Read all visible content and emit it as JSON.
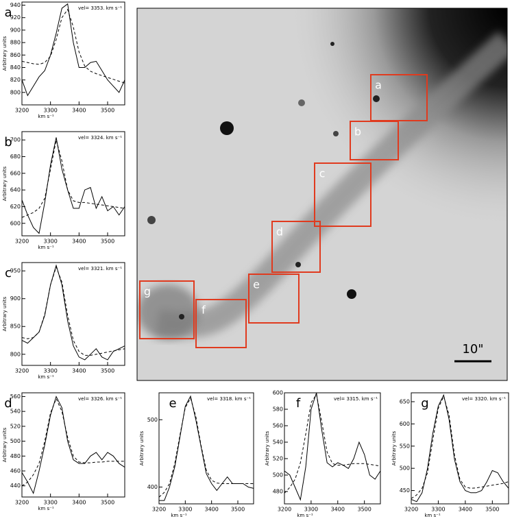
{
  "chart_data": [
    {
      "type": "line",
      "label": "a",
      "annotation": "vel= 3353. km s⁻¹",
      "ylabel": "Arbitrary units",
      "xlabel": "km s⁻¹",
      "xlim": [
        3200,
        3560
      ],
      "xticks": [
        3200,
        3300,
        3400,
        3500
      ],
      "ylim": [
        780,
        945
      ],
      "yticks": [
        800,
        820,
        840,
        860,
        880,
        900,
        920,
        940
      ],
      "x": [
        3200,
        3220,
        3240,
        3260,
        3280,
        3300,
        3320,
        3340,
        3360,
        3380,
        3400,
        3420,
        3440,
        3460,
        3480,
        3500,
        3520,
        3540,
        3560
      ],
      "series": [
        {
          "color": "#000000",
          "dash": false,
          "values": [
            820,
            795,
            810,
            825,
            835,
            860,
            895,
            935,
            942,
            880,
            840,
            840,
            848,
            850,
            835,
            820,
            810,
            800,
            820
          ]
        },
        {
          "color": "#000000",
          "dash": true,
          "values": [
            850,
            848,
            846,
            845,
            848,
            858,
            885,
            920,
            933,
            905,
            865,
            842,
            834,
            830,
            827,
            824,
            821,
            818,
            815
          ]
        }
      ]
    },
    {
      "type": "line",
      "label": "b",
      "annotation": "vel= 3324. km s⁻¹",
      "ylabel": "Arbitrary units",
      "xlabel": "km s⁻¹",
      "xlim": [
        3200,
        3560
      ],
      "xticks": [
        3200,
        3300,
        3400,
        3500
      ],
      "ylim": [
        585,
        710
      ],
      "yticks": [
        600,
        620,
        640,
        660,
        680,
        700
      ],
      "x": [
        3200,
        3220,
        3240,
        3260,
        3280,
        3300,
        3320,
        3340,
        3360,
        3380,
        3400,
        3420,
        3440,
        3460,
        3480,
        3500,
        3520,
        3540,
        3560
      ],
      "series": [
        {
          "color": "#000000",
          "dash": false,
          "values": [
            628,
            610,
            595,
            588,
            625,
            670,
            703,
            665,
            640,
            618,
            618,
            640,
            643,
            618,
            632,
            615,
            620,
            610,
            620
          ]
        },
        {
          "color": "#000000",
          "dash": true,
          "values": [
            607,
            610,
            613,
            618,
            630,
            665,
            700,
            675,
            640,
            627,
            625,
            625,
            624,
            623,
            622,
            621,
            620,
            619,
            618
          ]
        }
      ]
    },
    {
      "type": "line",
      "label": "c",
      "annotation": "vel= 3321. km s⁻¹",
      "ylabel": "Arbitrary units",
      "xlabel": "km s⁻¹",
      "xlim": [
        3200,
        3560
      ],
      "xticks": [
        3200,
        3300,
        3400,
        3500
      ],
      "ylim": [
        780,
        965
      ],
      "yticks": [
        800,
        850,
        900,
        950
      ],
      "x": [
        3200,
        3220,
        3240,
        3260,
        3280,
        3300,
        3320,
        3340,
        3360,
        3380,
        3400,
        3420,
        3440,
        3460,
        3480,
        3500,
        3520,
        3540,
        3560
      ],
      "series": [
        {
          "color": "#000000",
          "dash": false,
          "values": [
            825,
            820,
            830,
            840,
            870,
            925,
            960,
            925,
            860,
            815,
            795,
            790,
            800,
            810,
            795,
            790,
            805,
            810,
            815
          ]
        },
        {
          "color": "#000000",
          "dash": true,
          "values": [
            830,
            828,
            830,
            840,
            872,
            925,
            957,
            930,
            870,
            825,
            805,
            798,
            798,
            800,
            802,
            804,
            806,
            808,
            810
          ]
        }
      ]
    },
    {
      "type": "line",
      "label": "d",
      "annotation": "vel= 3326. km s⁻¹",
      "ylabel": "Arbitrary units",
      "xlabel": "km s⁻¹",
      "xlim": [
        3200,
        3560
      ],
      "xticks": [
        3200,
        3300,
        3400,
        3500
      ],
      "ylim": [
        425,
        565
      ],
      "yticks": [
        440,
        460,
        480,
        500,
        520,
        540,
        560
      ],
      "x": [
        3200,
        3220,
        3240,
        3260,
        3280,
        3300,
        3320,
        3340,
        3360,
        3380,
        3400,
        3420,
        3440,
        3460,
        3480,
        3500,
        3520,
        3540,
        3560
      ],
      "series": [
        {
          "color": "#000000",
          "dash": false,
          "values": [
            458,
            445,
            430,
            460,
            495,
            535,
            560,
            545,
            500,
            475,
            470,
            470,
            480,
            485,
            475,
            485,
            480,
            470,
            465
          ]
        },
        {
          "color": "#000000",
          "dash": true,
          "values": [
            440,
            445,
            455,
            470,
            500,
            538,
            557,
            540,
            505,
            480,
            472,
            471,
            471,
            472,
            472,
            473,
            473,
            473,
            473
          ]
        }
      ]
    },
    {
      "type": "line",
      "label": "e",
      "annotation": "vel= 3318. km s⁻¹",
      "ylabel": "Arbitrary units",
      "xlabel": "km s⁻¹",
      "xlim": [
        3200,
        3560
      ],
      "xticks": [
        3200,
        3300,
        3400,
        3500
      ],
      "ylim": [
        375,
        540
      ],
      "yticks": [
        400,
        500
      ],
      "x": [
        3200,
        3220,
        3240,
        3260,
        3280,
        3300,
        3320,
        3340,
        3360,
        3380,
        3400,
        3420,
        3440,
        3460,
        3480,
        3500,
        3520,
        3540,
        3560
      ],
      "series": [
        {
          "color": "#000000",
          "dash": false,
          "values": [
            380,
            380,
            400,
            430,
            475,
            520,
            535,
            500,
            460,
            420,
            405,
            395,
            405,
            415,
            405,
            405,
            405,
            400,
            398
          ]
        },
        {
          "color": "#000000",
          "dash": true,
          "values": [
            385,
            392,
            405,
            435,
            478,
            518,
            532,
            505,
            462,
            425,
            410,
            406,
            405,
            405,
            405,
            405,
            405,
            405,
            405
          ]
        }
      ]
    },
    {
      "type": "line",
      "label": "f",
      "annotation": "vel= 3315. km s⁻¹",
      "ylabel": "Arbitrary units",
      "xlabel": "km s⁻¹",
      "xlim": [
        3200,
        3560
      ],
      "xticks": [
        3200,
        3300,
        3400,
        3500
      ],
      "ylim": [
        465,
        600
      ],
      "yticks": [
        480,
        500,
        520,
        540,
        560,
        580,
        600
      ],
      "x": [
        3200,
        3220,
        3240,
        3260,
        3280,
        3300,
        3320,
        3340,
        3360,
        3380,
        3400,
        3420,
        3440,
        3460,
        3480,
        3500,
        3520,
        3540,
        3560
      ],
      "series": [
        {
          "color": "#000000",
          "dash": false,
          "values": [
            505,
            500,
            485,
            470,
            510,
            580,
            600,
            555,
            515,
            510,
            515,
            512,
            508,
            520,
            540,
            525,
            500,
            495,
            505
          ]
        },
        {
          "color": "#000000",
          "dash": true,
          "values": [
            478,
            485,
            495,
            515,
            550,
            588,
            598,
            565,
            528,
            514,
            512,
            512,
            513,
            514,
            514,
            514,
            513,
            512,
            511
          ]
        }
      ]
    },
    {
      "type": "line",
      "label": "g",
      "annotation": "vel= 3320. km s⁻¹",
      "ylabel": "Arbitrary units",
      "xlabel": "km s⁻¹",
      "xlim": [
        3200,
        3560
      ],
      "xticks": [
        3200,
        3300,
        3400,
        3500
      ],
      "ylim": [
        420,
        670
      ],
      "yticks": [
        450,
        500,
        550,
        600,
        650
      ],
      "x": [
        3200,
        3220,
        3240,
        3260,
        3280,
        3300,
        3320,
        3340,
        3360,
        3380,
        3400,
        3420,
        3440,
        3460,
        3480,
        3500,
        3520,
        3540,
        3560
      ],
      "series": [
        {
          "color": "#000000",
          "dash": false,
          "values": [
            430,
            425,
            445,
            500,
            580,
            640,
            665,
            610,
            520,
            470,
            450,
            445,
            445,
            450,
            470,
            495,
            490,
            470,
            455
          ]
        },
        {
          "color": "#000000",
          "dash": true,
          "values": [
            432,
            440,
            455,
            490,
            565,
            635,
            662,
            620,
            530,
            475,
            458,
            455,
            456,
            458,
            460,
            462,
            464,
            466,
            470
          ]
        }
      ]
    }
  ],
  "image": {
    "scale_label": "10\""
  }
}
